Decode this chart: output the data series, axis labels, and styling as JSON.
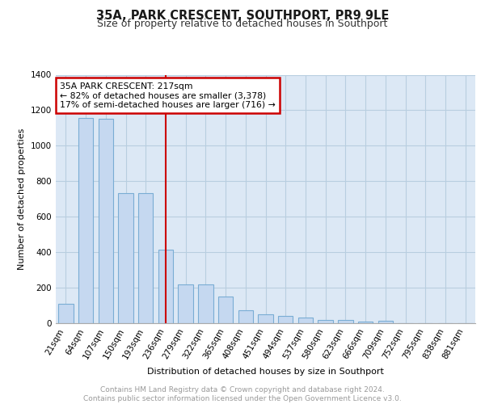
{
  "title": "35A, PARK CRESCENT, SOUTHPORT, PR9 9LE",
  "subtitle": "Size of property relative to detached houses in Southport",
  "xlabel": "Distribution of detached houses by size in Southport",
  "ylabel": "Number of detached properties",
  "categories": [
    "21sqm",
    "64sqm",
    "107sqm",
    "150sqm",
    "193sqm",
    "236sqm",
    "279sqm",
    "322sqm",
    "365sqm",
    "408sqm",
    "451sqm",
    "494sqm",
    "537sqm",
    "580sqm",
    "623sqm",
    "666sqm",
    "709sqm",
    "752sqm",
    "795sqm",
    "838sqm",
    "881sqm"
  ],
  "values": [
    110,
    1155,
    1150,
    735,
    735,
    415,
    220,
    220,
    150,
    75,
    50,
    40,
    30,
    20,
    20,
    10,
    15,
    0,
    0,
    0,
    0
  ],
  "bar_color": "#c5d8f0",
  "bar_edge_color": "#7aadd4",
  "background_color": "#dce8f5",
  "grid_color": "#b8cee0",
  "annotation_title": "35A PARK CRESCENT: 217sqm",
  "annotation_line1": "← 82% of detached houses are smaller (3,378)",
  "annotation_line2": "17% of semi-detached houses are larger (716) →",
  "annotation_box_color": "#ffffff",
  "annotation_box_edge": "#cc0000",
  "redline_color": "#cc0000",
  "ylim": [
    0,
    1400
  ],
  "yticks": [
    0,
    200,
    400,
    600,
    800,
    1000,
    1200,
    1400
  ],
  "footer_line1": "Contains HM Land Registry data © Crown copyright and database right 2024.",
  "footer_line2": "Contains public sector information licensed under the Open Government Licence v3.0.",
  "title_fontsize": 10.5,
  "subtitle_fontsize": 9,
  "ylabel_fontsize": 8,
  "xlabel_fontsize": 8,
  "tick_fontsize": 7.5,
  "footer_fontsize": 6.5,
  "footer_color": "#999999",
  "redline_index": 5
}
